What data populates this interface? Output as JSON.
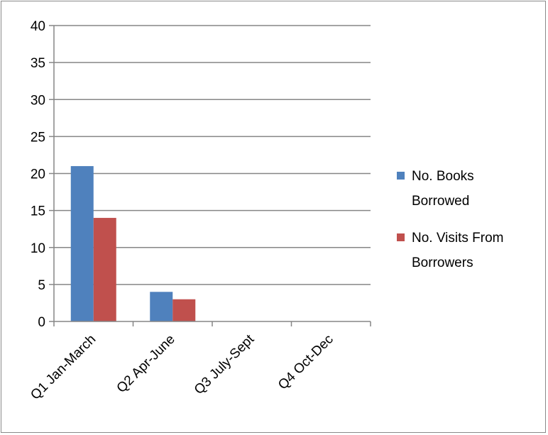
{
  "chart_data": {
    "type": "bar",
    "title": "",
    "xlabel": "",
    "ylabel": "",
    "categories": [
      "Q1 Jan-March",
      "Q2 Apr-June",
      "Q3 July-Sept",
      "Q4 Oct-Dec"
    ],
    "series": [
      {
        "name": "No. Books Borrowed",
        "values": [
          21,
          4,
          0,
          0
        ],
        "color": "#4f81bd"
      },
      {
        "name": "No. Visits From Borrowers",
        "values": [
          14,
          3,
          0,
          0
        ],
        "color": "#c0504d"
      }
    ],
    "ylim": [
      0,
      40
    ],
    "yticks": [
      0,
      5,
      10,
      15,
      20,
      25,
      30,
      35,
      40
    ],
    "grid": true,
    "legend": "right"
  }
}
